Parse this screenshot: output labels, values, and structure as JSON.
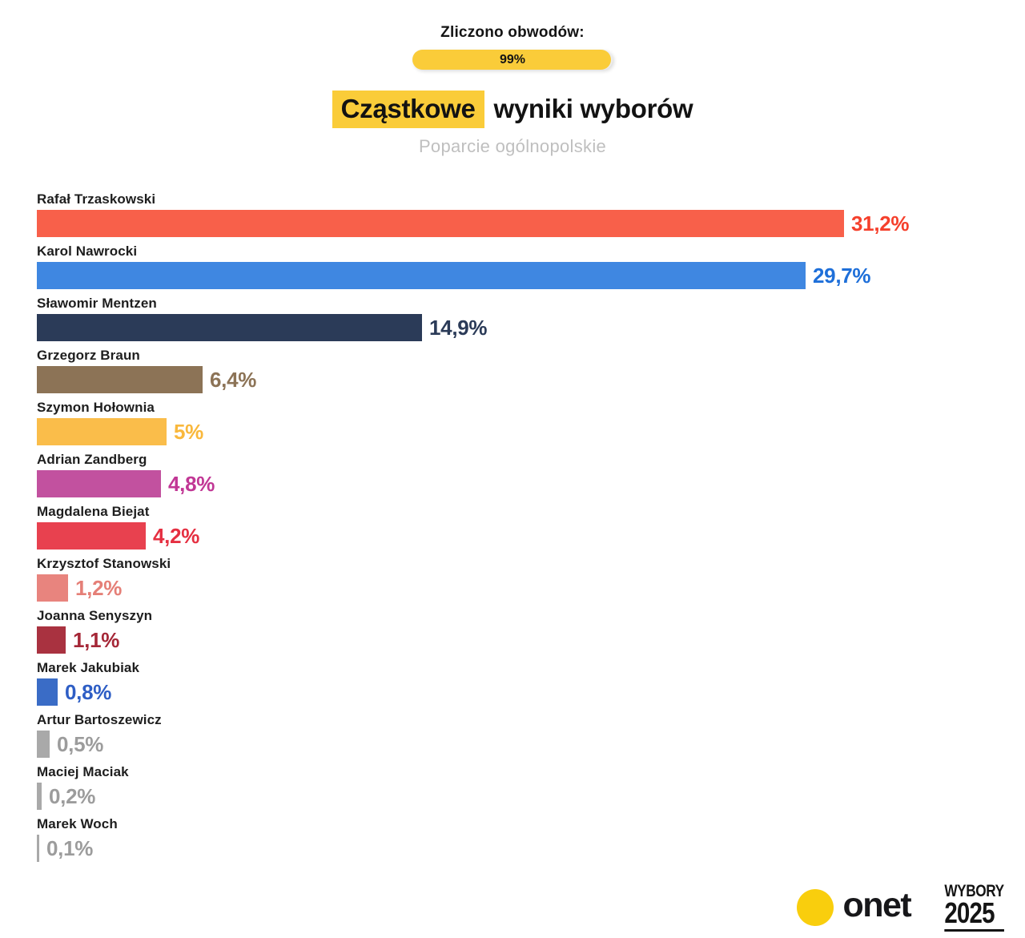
{
  "colors": {
    "accent_yellow": "#FACC39",
    "onet_yellow": "#F9CE0D",
    "text_dark": "#1E1E1E",
    "subtitle_gray": "#BFBFBF"
  },
  "header": {
    "counted_label": "Zliczono obwodów:",
    "counted_value": "99%",
    "counted_percent": 99,
    "title_highlight": "Cząstkowe",
    "title_rest": "wyniki wyborów",
    "subtitle": "Poparcie ogólnopolskie"
  },
  "chart_data": {
    "type": "bar",
    "orientation": "horizontal",
    "title": "Cząstkowe wyniki wyborów",
    "subtitle": "Poparcie ogólnopolskie",
    "unit": "%",
    "xlim": [
      0,
      36.8
    ],
    "grid": false,
    "legend": false,
    "value_label_position": "end-of-bar",
    "categories": [
      "Rafał Trzaskowski",
      "Karol Nawrocki",
      "Sławomir Mentzen",
      "Grzegorz Braun",
      "Szymon Hołownia",
      "Adrian Zandberg",
      "Magdalena Biejat",
      "Krzysztof Stanowski",
      "Joanna Senyszyn",
      "Marek Jakubiak",
      "Artur Bartoszewicz",
      "Maciej Maciak",
      "Marek Woch"
    ],
    "values": [
      31.2,
      29.7,
      14.9,
      6.4,
      5,
      4.8,
      4.2,
      1.2,
      1.1,
      0.8,
      0.5,
      0.2,
      0.1
    ],
    "value_labels": [
      "31,2%",
      "29,7%",
      "14,9%",
      "6,4%",
      "5%",
      "4,8%",
      "4,2%",
      "1,2%",
      "1,1%",
      "0,8%",
      "0,5%",
      "0,2%",
      "0,1%"
    ],
    "bar_colors": [
      "#F8604A",
      "#3F87E1",
      "#2B3B58",
      "#8C7356",
      "#FABD4A",
      "#C2519F",
      "#E8414F",
      "#E8847E",
      "#A93240",
      "#3A6CC6",
      "#A9A9A9",
      "#A9A9A9",
      "#A9A9A9"
    ],
    "label_colors": [
      "#F5402C",
      "#1E6FD9",
      "#2B3B58",
      "#8C7356",
      "#F9B83C",
      "#C13795",
      "#E52F41",
      "#E57F77",
      "#A52737",
      "#2E5EC5",
      "#9C9C9C",
      "#9C9C9C",
      "#9C9C9C"
    ]
  },
  "footer": {
    "onet_text": "onet",
    "wybory_line1": "WYBORY",
    "wybory_line2": "2025"
  }
}
